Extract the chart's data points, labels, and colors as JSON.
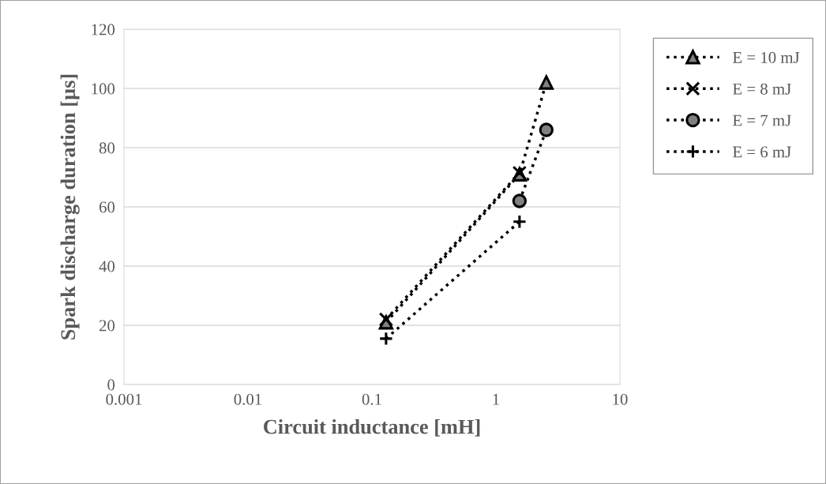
{
  "chart_data": {
    "type": "line",
    "xlabel": "Circuit inductance [mH]",
    "ylabel": "Spark discharge duration [µs]",
    "log": "x",
    "xlim": [
      0.001,
      10
    ],
    "xticks": [
      0.001,
      0.01,
      0.1,
      1,
      10
    ],
    "ylim": [
      0,
      120
    ],
    "yticks": [
      0,
      20,
      40,
      60,
      80,
      100,
      120
    ],
    "grid": "y",
    "legend": "right",
    "line_style": "dotted",
    "series": [
      {
        "name": "E = 10 mJ",
        "color": "#808080",
        "marker": "triangle",
        "x": [
          0.13,
          1.55,
          2.55
        ],
        "values": [
          21,
          71,
          102
        ]
      },
      {
        "name": "E = 8 mJ",
        "color": "#000000",
        "marker": "cross",
        "x": [
          0.13,
          1.55
        ],
        "values": [
          22,
          71.5
        ]
      },
      {
        "name": "E = 7 mJ",
        "color": "#808080",
        "marker": "circle",
        "x": [
          1.55,
          2.55
        ],
        "values": [
          62,
          86
        ]
      },
      {
        "name": "E = 6 mJ",
        "color": "#000000",
        "marker": "plus",
        "x": [
          0.13,
          1.55
        ],
        "values": [
          15.5,
          55
        ]
      }
    ]
  }
}
